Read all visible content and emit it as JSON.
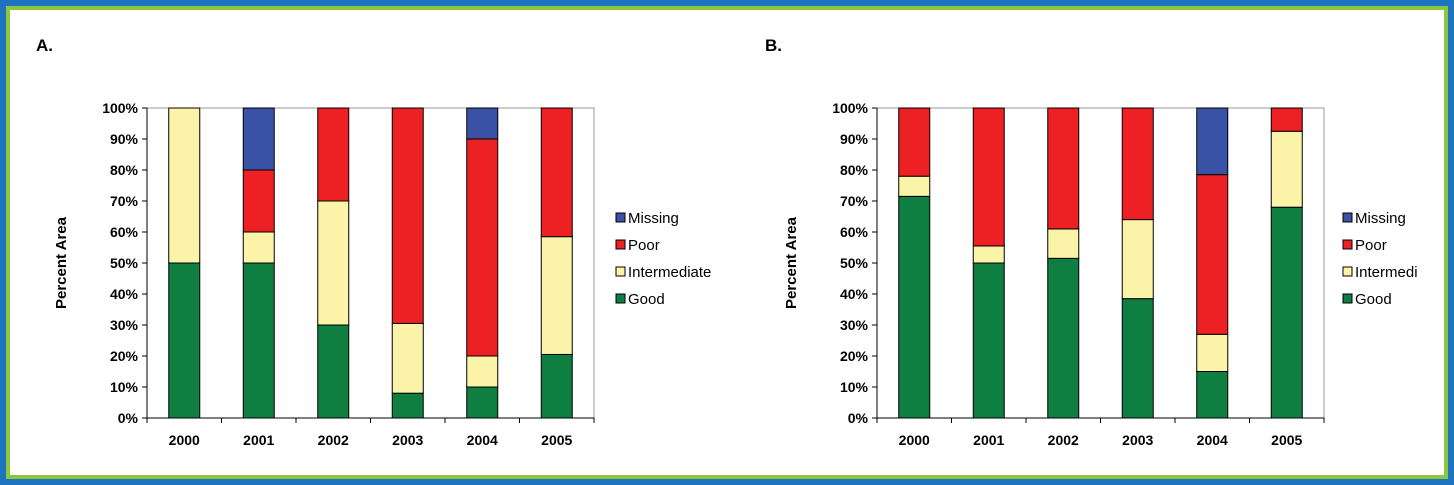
{
  "panels": [
    {
      "label": "A."
    },
    {
      "label": "B."
    }
  ],
  "colors": {
    "Missing": "#3a52a6",
    "Poor": "#ed2024",
    "Intermediate": "#fbf4a8",
    "Good": "#0e7f41",
    "frame_outer": "#1e73be",
    "frame_inner": "#8dc63f"
  },
  "chart_data": [
    {
      "type": "bar",
      "stacked": true,
      "title": "",
      "xlabel": "",
      "ylabel": "Percent Area",
      "ylim": [
        0,
        100
      ],
      "yticks": [
        "0%",
        "10%",
        "20%",
        "30%",
        "40%",
        "50%",
        "60%",
        "70%",
        "80%",
        "90%",
        "100%"
      ],
      "categories": [
        "2000",
        "2001",
        "2002",
        "2003",
        "2004",
        "2005"
      ],
      "legend_position": "right",
      "legend": [
        "Missing",
        "Poor",
        "Intermediate",
        "Good"
      ],
      "series": [
        {
          "name": "Good",
          "values": [
            50,
            50,
            30,
            8,
            10,
            20.5
          ]
        },
        {
          "name": "Intermediate",
          "values": [
            50,
            10,
            40,
            22.5,
            10,
            38
          ]
        },
        {
          "name": "Poor",
          "values": [
            0,
            20,
            30,
            69.5,
            70,
            41.5
          ]
        },
        {
          "name": "Missing",
          "values": [
            0,
            20,
            0,
            0,
            10,
            0
          ]
        }
      ]
    },
    {
      "type": "bar",
      "stacked": true,
      "title": "",
      "xlabel": "",
      "ylabel": "Percent Area",
      "ylim": [
        0,
        100
      ],
      "yticks": [
        "0%",
        "10%",
        "20%",
        "30%",
        "40%",
        "50%",
        "60%",
        "70%",
        "80%",
        "90%",
        "100%"
      ],
      "categories": [
        "2000",
        "2001",
        "2002",
        "2003",
        "2004",
        "2005"
      ],
      "legend_position": "right",
      "legend": [
        "Missing",
        "Poor",
        "Intermedi",
        "Good"
      ],
      "series": [
        {
          "name": "Good",
          "values": [
            71.5,
            50,
            51.5,
            38.5,
            15,
            68
          ]
        },
        {
          "name": "Intermediate",
          "values": [
            6.5,
            5.5,
            9.5,
            25.5,
            12,
            24.5
          ]
        },
        {
          "name": "Poor",
          "values": [
            22,
            44.5,
            39,
            36,
            51.5,
            7.5
          ]
        },
        {
          "name": "Missing",
          "values": [
            0,
            0,
            0,
            0,
            21.5,
            0
          ]
        }
      ]
    }
  ]
}
